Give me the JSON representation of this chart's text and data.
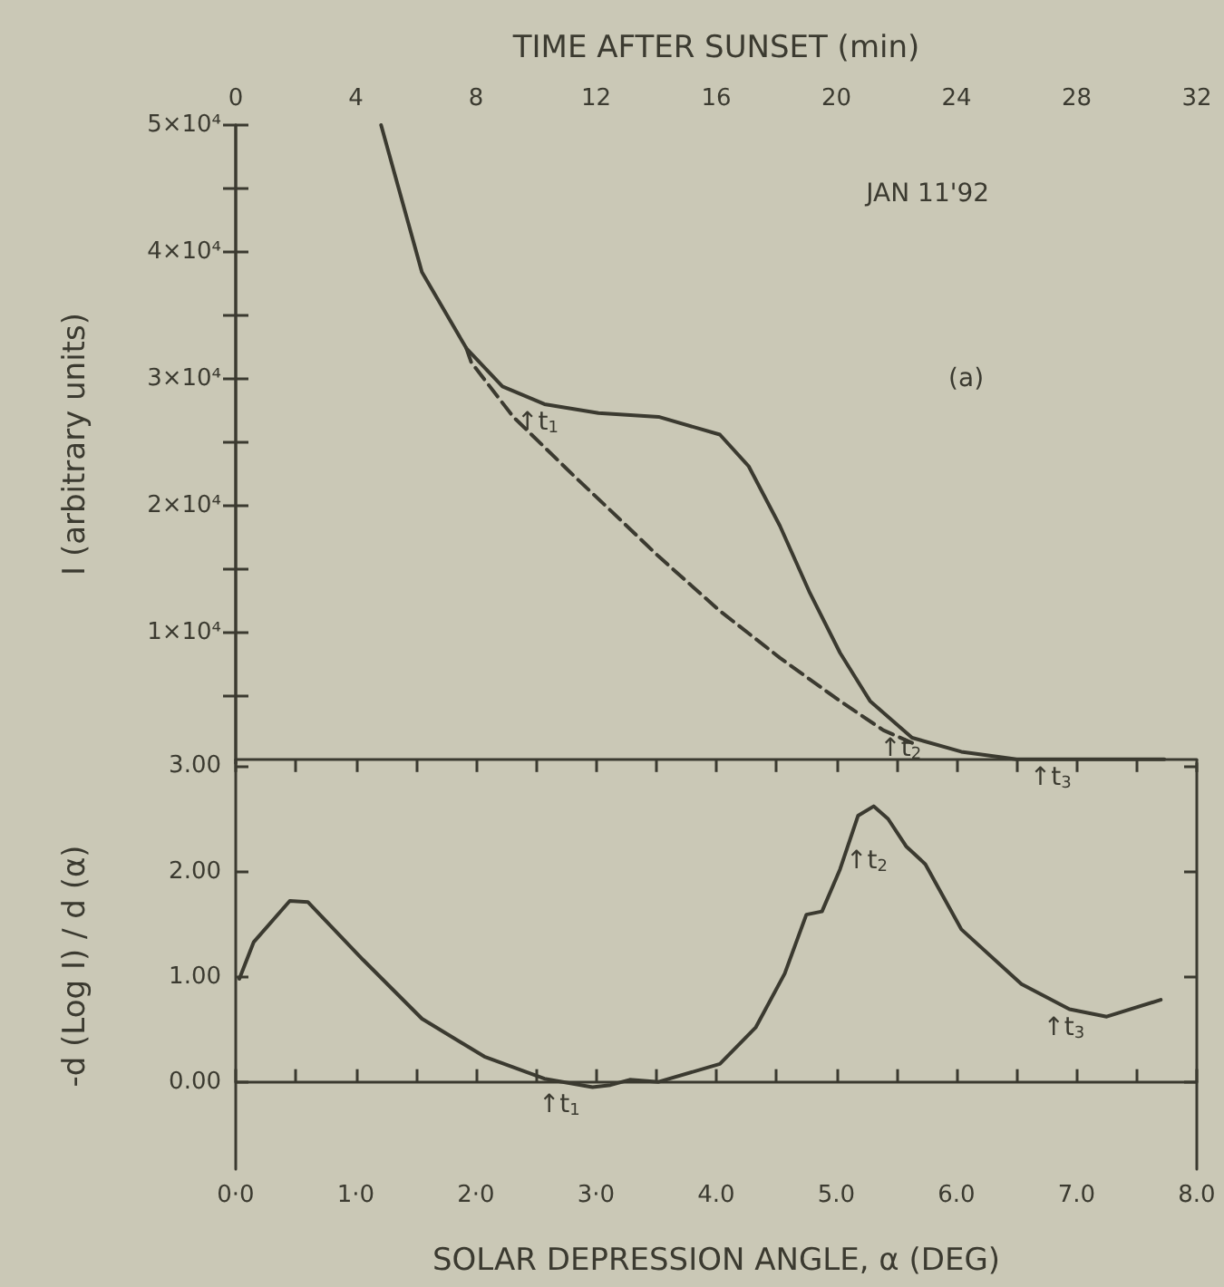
{
  "chart_data": [
    {
      "type": "line",
      "x2label": "TIME AFTER SUNSET (min)",
      "ylabel": "I (arbitrary units)",
      "marker": "none",
      "tick_labels": "y",
      "xlim": [
        0,
        8
      ],
      "x2lim": [
        0,
        32
      ],
      "x2ticks": [
        0,
        {
          "value": 2,
          "label": null
        },
        4,
        {
          "value": 6,
          "label": null
        },
        8,
        {
          "value": 10,
          "label": null
        },
        12,
        {
          "value": 14,
          "label": null
        },
        16,
        {
          "value": 18,
          "label": null
        },
        20,
        {
          "value": 22,
          "label": null
        },
        24,
        {
          "value": 26,
          "label": null
        },
        28,
        {
          "value": 30,
          "label": null
        },
        32
      ],
      "ylim": [
        -300,
        50000
      ],
      "yticks": [
        {
          "value": 5000,
          "label": null
        },
        {
          "value": 10000,
          "label": "1×10⁴"
        },
        {
          "value": 15000,
          "label": null
        },
        {
          "value": 20000,
          "label": "2×10⁴"
        },
        {
          "value": 25000,
          "label": null
        },
        {
          "value": 30000,
          "label": "3×10⁴"
        },
        {
          "value": 35000,
          "label": null
        },
        {
          "value": 40000,
          "label": "4×10⁴"
        },
        {
          "value": 45000,
          "label": null
        },
        {
          "value": 50000,
          "label": "5×10⁴"
        }
      ],
      "series": [
        {
          "color": "#3b3a30",
          "line_style": "solid",
          "x": [
            1.21,
            1.55,
            1.92,
            2.22,
            2.57,
            3.02,
            3.52,
            4.03,
            4.27,
            4.53,
            4.78,
            5.03,
            5.28,
            5.63,
            6.04,
            6.5,
            7.73
          ],
          "values": [
            50000,
            38400,
            32400,
            29400,
            28000,
            27300,
            27000,
            25600,
            23100,
            18400,
            13100,
            8400,
            4600,
            1700,
            600,
            0,
            0
          ]
        },
        {
          "color": "#3b3a30",
          "line_style": "dashed",
          "x": [
            1.92,
            1.96,
            2.31,
            2.82,
            3.1,
            3.52,
            4.03,
            4.53,
            5.03,
            5.39,
            5.63
          ],
          "values": [
            32400,
            31300,
            27000,
            22300,
            19800,
            16000,
            11700,
            8000,
            4600,
            2300,
            1300
          ]
        }
      ],
      "annotations": [
        "JAN 11'92",
        "(a)",
        {
          "text": "↑t$_{1}$",
          "x": 2.34,
          "y": 28000
        },
        {
          "text": "↑t$_{2}$",
          "x": 5.36,
          "y": 2300
        },
        {
          "text": "↑t$_{3}$",
          "x": 6.61,
          "y": 0
        }
      ]
    },
    {
      "type": "line",
      "xlabel": "SOLAR DEPRESSION ANGLE, α (DEG)",
      "ylabel": "-d (Log I) / d (α)",
      "marker": "none",
      "xlim": [
        0,
        8
      ],
      "xticks": [
        {
          "value": 0,
          "label": "0·0"
        },
        {
          "value": 0.5,
          "label": null
        },
        {
          "value": 1,
          "label": "1·0"
        },
        {
          "value": 1.5,
          "label": null
        },
        {
          "value": 2,
          "label": "2·0"
        },
        {
          "value": 2.5,
          "label": null
        },
        {
          "value": 3,
          "label": "3·0"
        },
        {
          "value": 3.5,
          "label": null
        },
        {
          "value": 4,
          "label": "4.0"
        },
        {
          "value": 4.5,
          "label": null
        },
        {
          "value": 5,
          "label": "5.0"
        },
        {
          "value": 5.5,
          "label": null
        },
        {
          "value": 6,
          "label": "6.0"
        },
        {
          "value": 6.5,
          "label": null
        },
        {
          "value": 7,
          "label": "7.0"
        },
        {
          "value": 7.5,
          "label": null
        },
        {
          "value": 8,
          "label": "8.0"
        }
      ],
      "ylim": [
        -0.83,
        3.03
      ],
      "yticks": [
        {
          "value": 0,
          "label": "0.00"
        },
        {
          "value": 1,
          "label": "1.00"
        },
        {
          "value": 2,
          "label": "2.00"
        },
        {
          "value": 3,
          "label": "3.00"
        }
      ],
      "series": [
        {
          "color": "#3b3a30",
          "line_style": "solid",
          "x": [
            0.03,
            0.15,
            0.45,
            0.6,
            1.06,
            1.55,
            2.07,
            2.57,
            2.97,
            3.12,
            3.28,
            3.52,
            4.03,
            4.33,
            4.57,
            4.75,
            4.88,
            5.03,
            5.18,
            5.31,
            5.43,
            5.58,
            5.74,
            6.04,
            6.54,
            6.94,
            7.25,
            7.7
          ],
          "values": [
            0.98,
            1.33,
            1.72,
            1.71,
            1.16,
            0.6,
            0.24,
            0.03,
            -0.05,
            -0.03,
            0.02,
            0.0,
            0.17,
            0.52,
            1.03,
            1.59,
            1.62,
            2.02,
            2.53,
            2.62,
            2.5,
            2.24,
            2.07,
            1.45,
            0.93,
            0.69,
            0.62,
            0.78
          ]
        }
      ],
      "annotations": [
        {
          "text": "↑t$_{1}$",
          "x": 2.52,
          "y": -0.05
        },
        "↑t$_{2}$",
        "↑t$_{3}$"
      ]
    }
  ]
}
